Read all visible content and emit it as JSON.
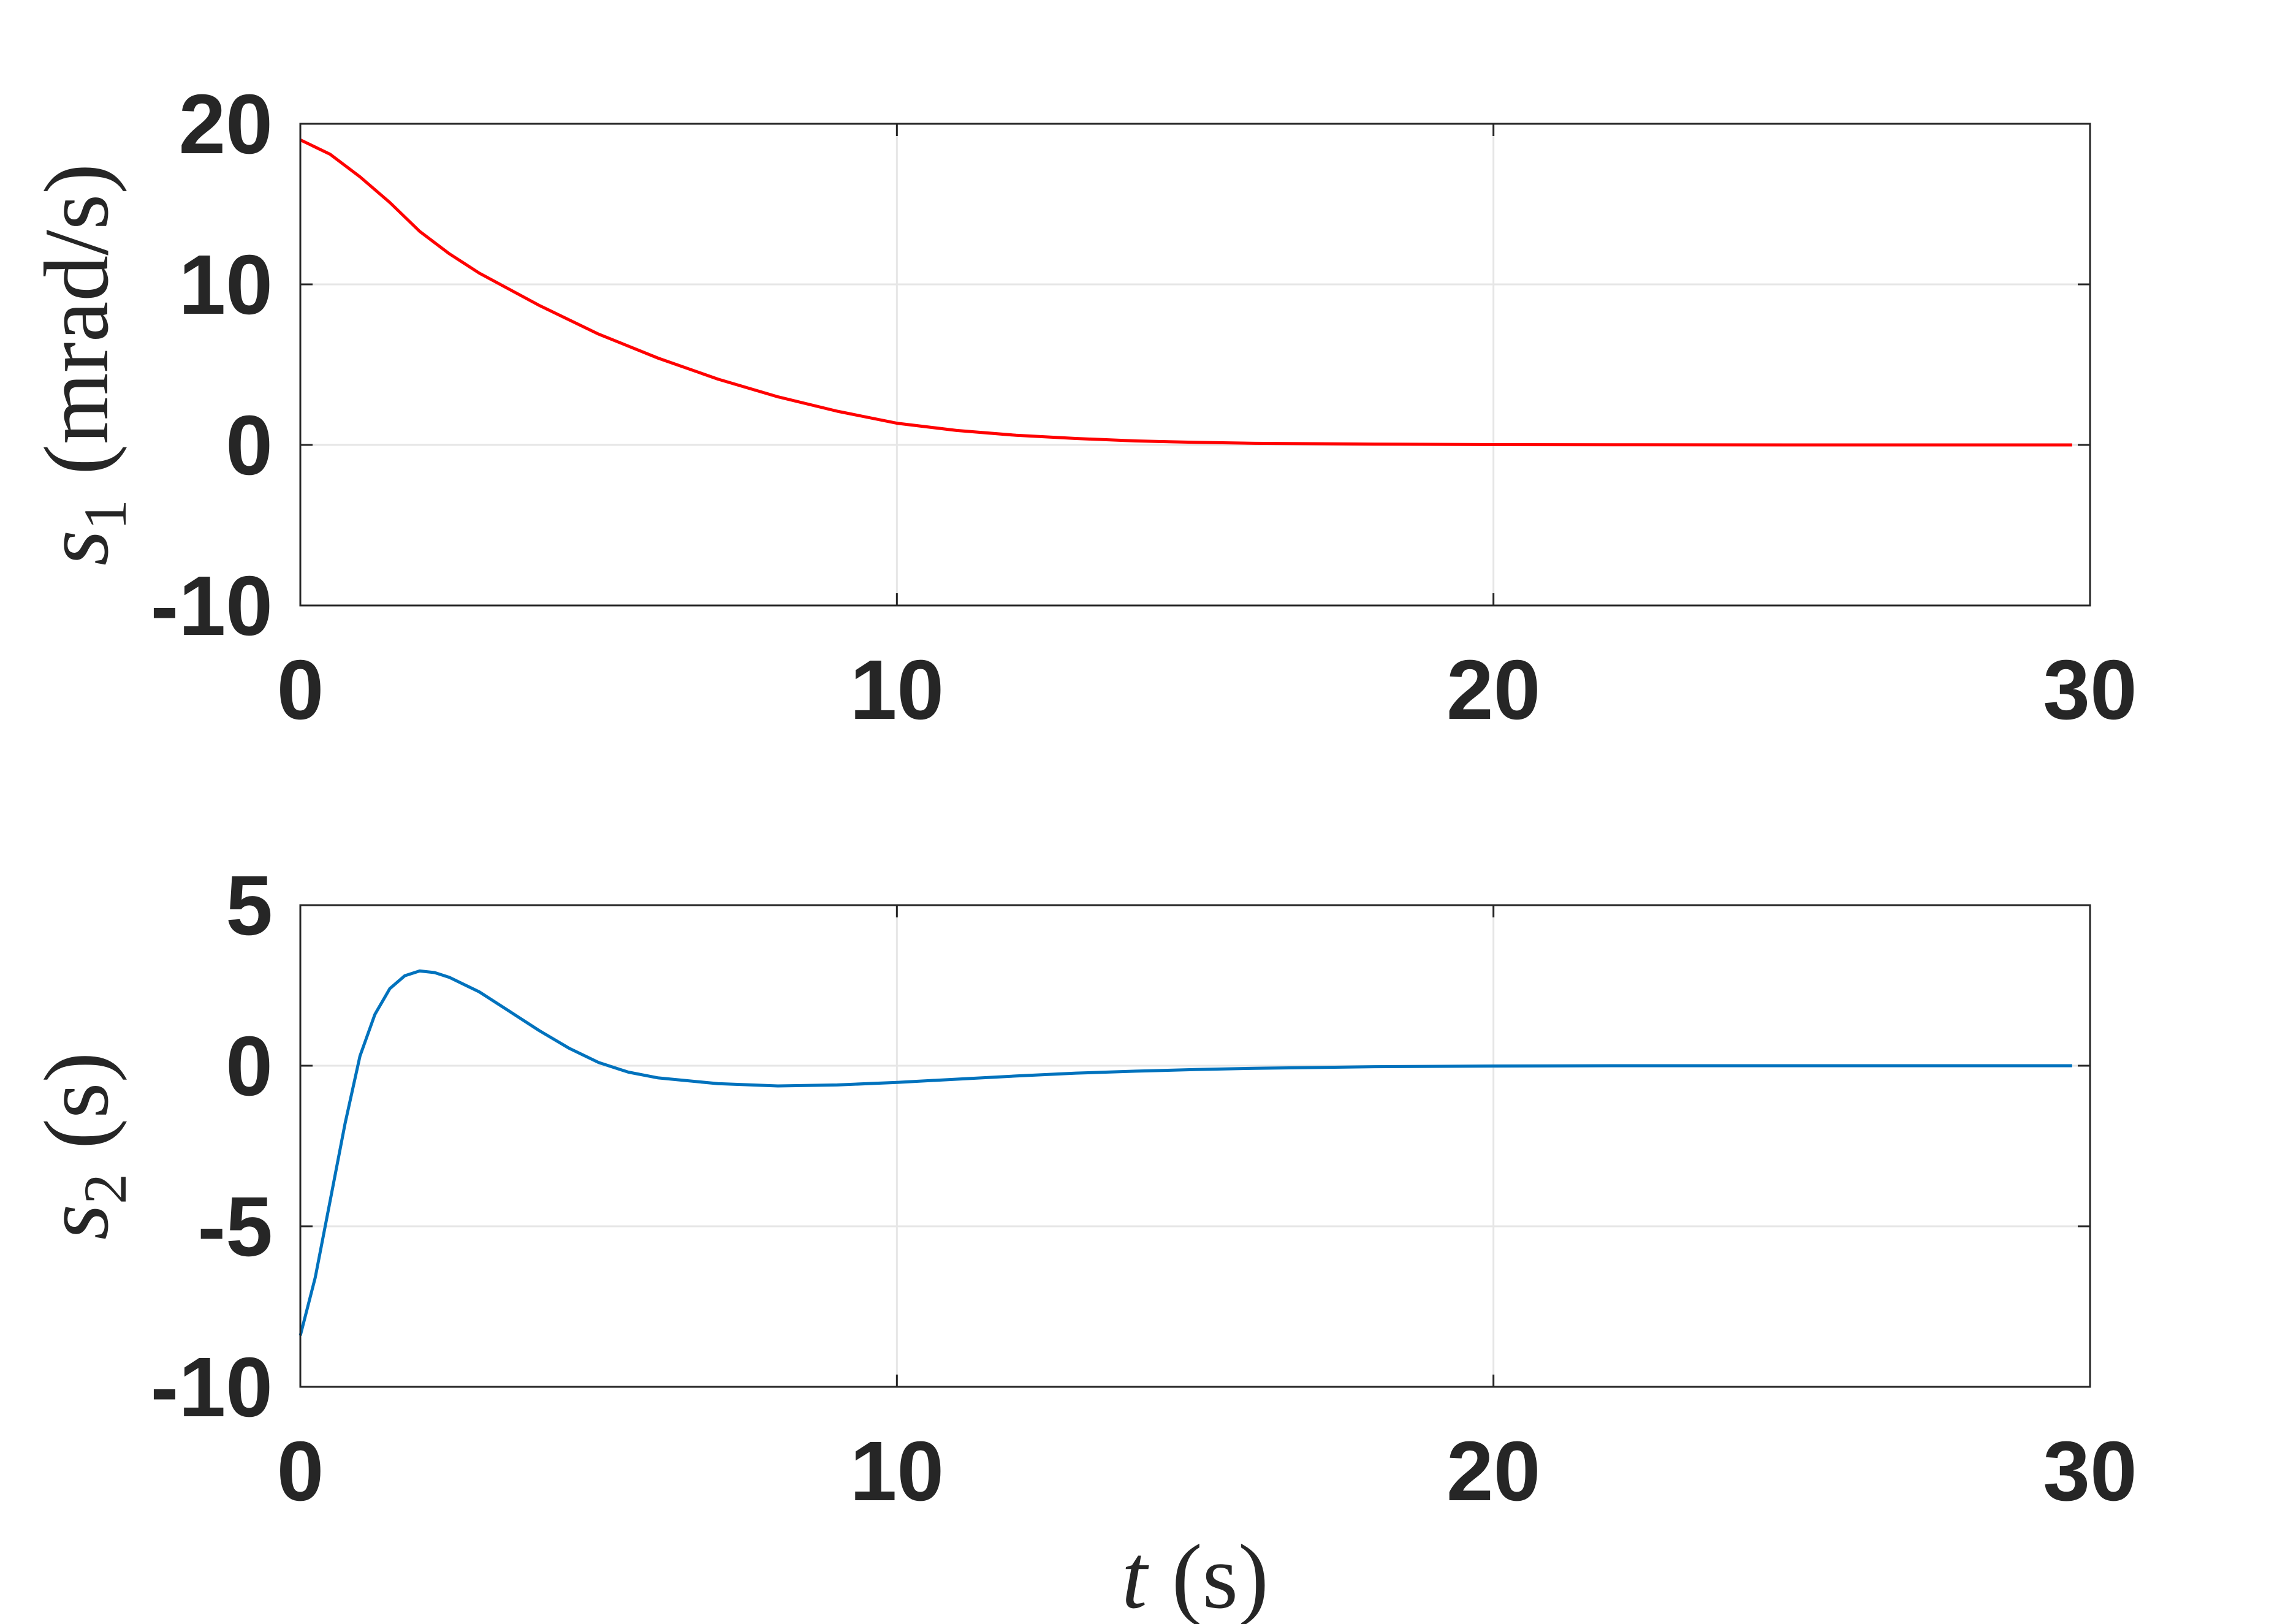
{
  "chart_data": [
    {
      "type": "line",
      "ylabel": {
        "symbol": "s",
        "subscript": "1",
        "unit": "(mrad/s)"
      },
      "xlabel": "",
      "xlim": [
        0,
        30
      ],
      "ylim": [
        -10,
        20
      ],
      "xticks": [
        0,
        10,
        20,
        30
      ],
      "xtick_labels": [
        "0",
        "10",
        "20",
        "30"
      ],
      "yticks": [
        -10,
        0,
        10,
        20
      ],
      "ytick_labels": [
        "-10",
        "0",
        "10",
        "20"
      ],
      "grid": true,
      "series": [
        {
          "color": "#ff0000",
          "x": [
            0,
            0.5,
            1,
            1.5,
            2,
            2.5,
            3,
            4,
            5,
            6,
            7,
            8,
            9,
            10,
            11,
            12,
            13,
            14,
            15,
            16,
            18,
            20,
            22,
            25,
            29.7
          ],
          "y": [
            19,
            18.1,
            16.7,
            15.1,
            13.3,
            11.9,
            10.7,
            8.7,
            6.9,
            5.4,
            4.1,
            3.0,
            2.1,
            1.35,
            0.9,
            0.6,
            0.4,
            0.25,
            0.16,
            0.1,
            0.05,
            0.02,
            0.01,
            0.0,
            0.0
          ]
        }
      ]
    },
    {
      "type": "line",
      "ylabel": {
        "symbol": "s",
        "subscript": "2",
        "unit": "(s)"
      },
      "xlabel": {
        "symbol": "t",
        "unit": "(s)"
      },
      "xlim": [
        0,
        30
      ],
      "ylim": [
        -10,
        5
      ],
      "xticks": [
        0,
        10,
        20,
        30
      ],
      "xtick_labels": [
        "0",
        "10",
        "20",
        "30"
      ],
      "yticks": [
        -10,
        -5,
        0,
        5
      ],
      "ytick_labels": [
        "-10",
        "-5",
        "0",
        "5"
      ],
      "grid": true,
      "series": [
        {
          "color": "#0072bd",
          "x": [
            0,
            0.25,
            0.5,
            0.75,
            1.0,
            1.25,
            1.5,
            1.75,
            2.0,
            2.25,
            2.5,
            3.0,
            3.5,
            4.0,
            4.5,
            5.0,
            5.5,
            6.0,
            7.0,
            8.0,
            9.0,
            10.0,
            11.0,
            12.0,
            13.0,
            14.0,
            15.0,
            16.0,
            18.0,
            20.0,
            22.0,
            25.0,
            29.7
          ],
          "y": [
            -8.4,
            -6.6,
            -4.2,
            -1.8,
            0.3,
            1.6,
            2.4,
            2.8,
            2.95,
            2.9,
            2.75,
            2.3,
            1.7,
            1.1,
            0.55,
            0.1,
            -0.2,
            -0.38,
            -0.56,
            -0.63,
            -0.6,
            -0.52,
            -0.42,
            -0.32,
            -0.23,
            -0.17,
            -0.12,
            -0.08,
            -0.03,
            -0.01,
            0.0,
            0.0,
            0.0
          ]
        }
      ]
    }
  ]
}
